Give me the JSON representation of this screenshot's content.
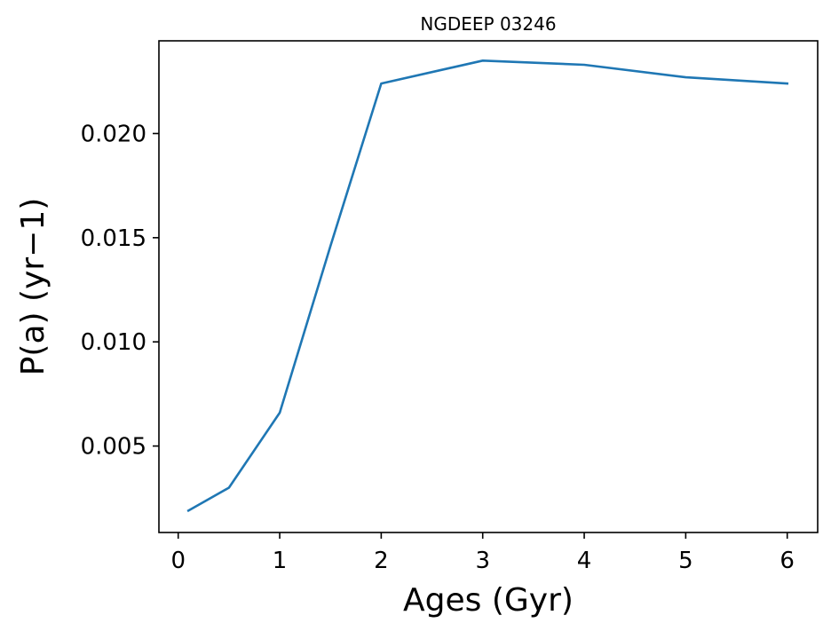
{
  "chart_data": {
    "type": "line",
    "title": "NGDEEP 03246",
    "xlabel": "Ages (Gyr)",
    "ylabel": "P(a) (yr−1)",
    "xlim": [
      -0.19,
      6.3
    ],
    "ylim": [
      0.00085,
      0.02445
    ],
    "xticks": [
      0,
      1,
      2,
      3,
      4,
      5,
      6
    ],
    "xtick_labels": [
      "0",
      "1",
      "2",
      "3",
      "4",
      "5",
      "6"
    ],
    "yticks": [
      0.005,
      0.01,
      0.015,
      0.02
    ],
    "ytick_labels": [
      "0.005",
      "0.010",
      "0.015",
      "0.020"
    ],
    "grid": false,
    "series": [
      {
        "color": "#1f77b4",
        "x": [
          0.1,
          0.5,
          1.0,
          1.5,
          2.0,
          3.0,
          4.0,
          5.0,
          6.0
        ],
        "y": [
          0.0019,
          0.003,
          0.0066,
          0.0146,
          0.0224,
          0.0235,
          0.0233,
          0.0227,
          0.0224
        ]
      }
    ]
  }
}
